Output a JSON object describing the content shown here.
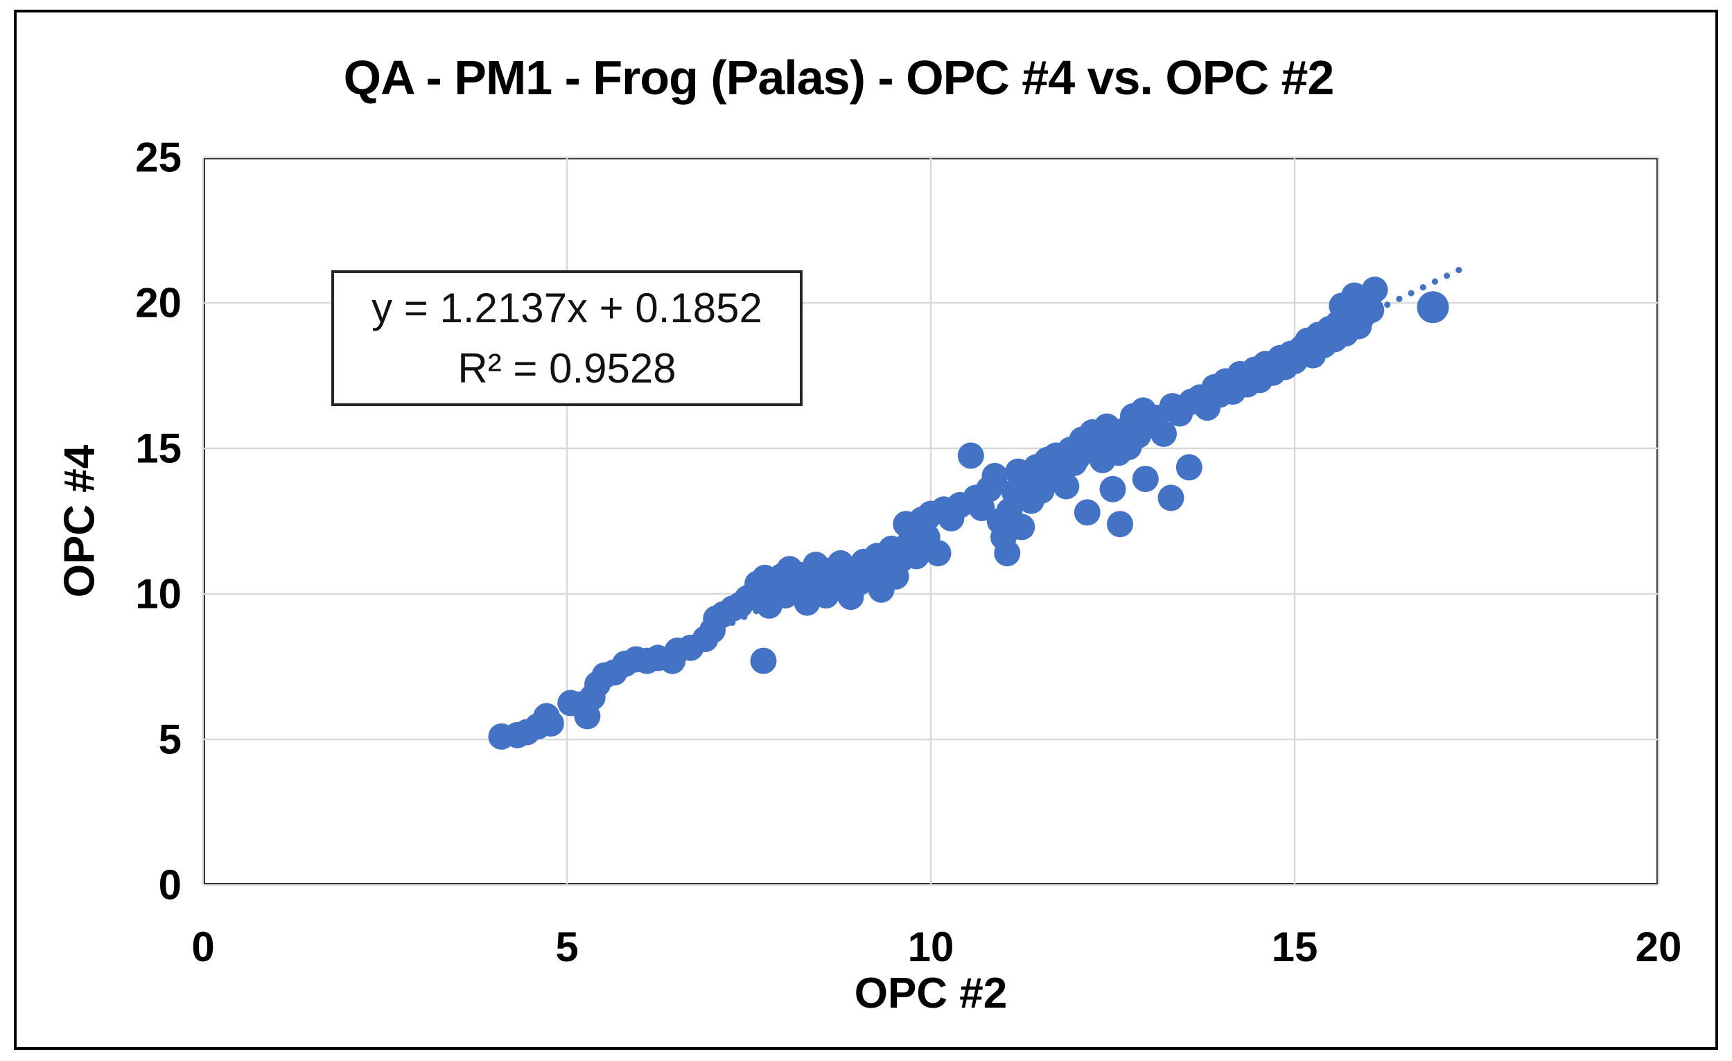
{
  "chart_data": {
    "type": "scatter",
    "title": "QA - PM1 - Frog (Palas) - OPC #4 vs. OPC #2",
    "xlabel": "OPC #2",
    "ylabel": "OPC #4",
    "xlim": [
      0,
      20
    ],
    "ylim": [
      0,
      25
    ],
    "x_ticks": [
      0,
      5,
      10,
      15,
      20
    ],
    "y_ticks": [
      0,
      5,
      10,
      15,
      20,
      25
    ],
    "grid": true,
    "legend": false,
    "colors": {
      "point": "#4472C4",
      "trendline": "#4472C4",
      "gridline": "#D9D9D9",
      "frame": "#1F1F1F",
      "text": "#000000"
    },
    "marker_radius_px": 19,
    "large_marker_radius_px": 23,
    "trendline": {
      "style": "dotted",
      "slope": 1.2137,
      "intercept": 0.1852,
      "x_start": 4.0,
      "x_end": 17.3,
      "equation_label": "y = 1.2137x + 0.1852",
      "r_squared_label": "R² = 0.9528"
    },
    "points": [
      [
        4.1,
        5.1
      ],
      [
        4.32,
        5.15
      ],
      [
        4.45,
        5.25
      ],
      [
        4.6,
        5.45
      ],
      [
        4.72,
        5.8
      ],
      [
        4.78,
        5.55
      ],
      [
        5.05,
        6.25
      ],
      [
        5.18,
        6.2
      ],
      [
        5.28,
        5.8
      ],
      [
        5.35,
        6.45
      ],
      [
        5.42,
        6.9
      ],
      [
        5.52,
        7.2
      ],
      [
        5.65,
        7.3
      ],
      [
        5.8,
        7.6
      ],
      [
        5.95,
        7.75
      ],
      [
        6.1,
        7.7
      ],
      [
        6.25,
        7.8
      ],
      [
        6.45,
        7.7
      ],
      [
        6.52,
        8.05
      ],
      [
        6.7,
        8.15
      ],
      [
        6.9,
        8.45
      ],
      [
        7.0,
        8.75
      ],
      [
        7.05,
        9.15
      ],
      [
        7.15,
        9.3
      ],
      [
        7.28,
        9.5
      ],
      [
        7.38,
        9.62
      ],
      [
        7.48,
        9.85
      ],
      [
        7.7,
        7.7
      ],
      [
        7.55,
        9.95
      ],
      [
        7.62,
        10.35
      ],
      [
        7.72,
        10.55
      ],
      [
        7.78,
        9.6
      ],
      [
        7.85,
        10.2
      ],
      [
        7.95,
        10.6
      ],
      [
        8.0,
        9.95
      ],
      [
        8.06,
        10.85
      ],
      [
        8.12,
        10.25
      ],
      [
        8.2,
        10.65
      ],
      [
        8.3,
        9.7
      ],
      [
        8.36,
        10.3
      ],
      [
        8.42,
        11.0
      ],
      [
        8.5,
        10.45
      ],
      [
        8.56,
        9.95
      ],
      [
        8.62,
        10.8
      ],
      [
        8.7,
        10.2
      ],
      [
        8.76,
        11.05
      ],
      [
        8.85,
        10.55
      ],
      [
        8.9,
        9.9
      ],
      [
        8.96,
        10.7
      ],
      [
        9.02,
        10.4
      ],
      [
        9.08,
        11.1
      ],
      [
        9.12,
        10.8
      ],
      [
        9.2,
        10.5
      ],
      [
        9.26,
        11.3
      ],
      [
        9.32,
        10.15
      ],
      [
        9.4,
        10.9
      ],
      [
        9.46,
        11.55
      ],
      [
        9.52,
        10.6
      ],
      [
        9.6,
        11.2
      ],
      [
        9.66,
        12.4
      ],
      [
        9.72,
        11.8
      ],
      [
        9.8,
        11.3
      ],
      [
        9.88,
        12.55
      ],
      [
        9.95,
        11.95
      ],
      [
        10.0,
        12.75
      ],
      [
        10.1,
        11.4
      ],
      [
        10.18,
        12.9
      ],
      [
        10.28,
        12.6
      ],
      [
        10.4,
        13.05
      ],
      [
        10.55,
        14.75
      ],
      [
        10.62,
        13.3
      ],
      [
        10.7,
        12.95
      ],
      [
        10.8,
        13.6
      ],
      [
        10.88,
        14.05
      ],
      [
        10.95,
        12.5
      ],
      [
        11.0,
        11.95
      ],
      [
        11.05,
        11.4
      ],
      [
        11.08,
        12.85
      ],
      [
        11.15,
        13.5
      ],
      [
        11.2,
        14.2
      ],
      [
        11.25,
        12.3
      ],
      [
        11.32,
        13.85
      ],
      [
        11.38,
        13.2
      ],
      [
        11.45,
        14.35
      ],
      [
        11.52,
        13.55
      ],
      [
        11.6,
        14.6
      ],
      [
        11.66,
        13.95
      ],
      [
        11.72,
        14.75
      ],
      [
        11.8,
        14.25
      ],
      [
        11.86,
        13.7
      ],
      [
        11.92,
        14.95
      ],
      [
        11.97,
        14.5
      ],
      [
        12.02,
        14.7
      ],
      [
        12.08,
        15.3
      ],
      [
        12.15,
        12.8
      ],
      [
        12.16,
        14.95
      ],
      [
        12.22,
        15.55
      ],
      [
        12.3,
        15.1
      ],
      [
        12.36,
        14.6
      ],
      [
        12.42,
        15.75
      ],
      [
        12.5,
        13.6
      ],
      [
        12.52,
        15.2
      ],
      [
        12.58,
        14.85
      ],
      [
        12.6,
        12.4
      ],
      [
        12.65,
        15.6
      ],
      [
        12.72,
        15.05
      ],
      [
        12.78,
        16.1
      ],
      [
        12.85,
        15.45
      ],
      [
        12.92,
        16.3
      ],
      [
        12.95,
        13.95
      ],
      [
        13.0,
        15.85
      ],
      [
        13.1,
        16.05
      ],
      [
        13.2,
        15.5
      ],
      [
        13.3,
        13.3
      ],
      [
        13.32,
        16.45
      ],
      [
        13.42,
        16.2
      ],
      [
        13.55,
        14.35
      ],
      [
        13.58,
        16.6
      ],
      [
        13.7,
        16.75
      ],
      [
        13.8,
        16.4
      ],
      [
        13.9,
        17.1
      ],
      [
        13.97,
        16.85
      ],
      [
        14.05,
        17.3
      ],
      [
        14.15,
        16.95
      ],
      [
        14.25,
        17.55
      ],
      [
        14.35,
        17.2
      ],
      [
        14.45,
        17.7
      ],
      [
        14.52,
        17.35
      ],
      [
        14.6,
        17.9
      ],
      [
        14.7,
        17.6
      ],
      [
        14.8,
        18.1
      ],
      [
        14.87,
        17.8
      ],
      [
        14.95,
        18.25
      ],
      [
        15.0,
        18.0
      ],
      [
        15.1,
        18.45
      ],
      [
        15.18,
        18.7
      ],
      [
        15.25,
        18.2
      ],
      [
        15.33,
        18.9
      ],
      [
        15.4,
        18.55
      ],
      [
        15.48,
        19.1
      ],
      [
        15.55,
        18.75
      ],
      [
        15.6,
        19.3
      ],
      [
        15.65,
        19.9
      ],
      [
        15.7,
        18.95
      ],
      [
        15.75,
        19.55
      ],
      [
        15.82,
        20.25
      ],
      [
        15.88,
        19.2
      ],
      [
        15.92,
        19.5
      ],
      [
        15.98,
        20.0
      ],
      [
        16.05,
        19.75
      ],
      [
        16.1,
        20.45
      ]
    ],
    "points_large": [
      [
        16.9,
        19.85
      ]
    ]
  }
}
